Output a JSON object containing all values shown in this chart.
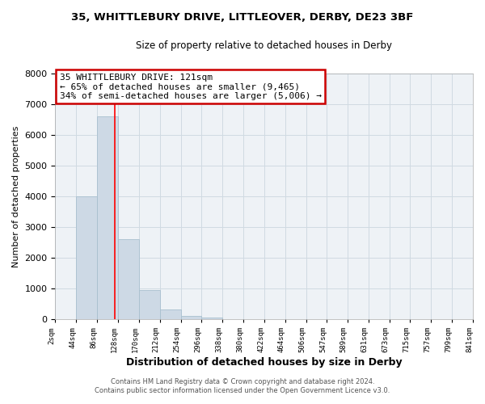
{
  "title": "35, WHITTLEBURY DRIVE, LITTLEOVER, DERBY, DE23 3BF",
  "subtitle": "Size of property relative to detached houses in Derby",
  "xlabel": "Distribution of detached houses by size in Derby",
  "ylabel": "Number of detached properties",
  "bin_edges": [
    2,
    44,
    86,
    128,
    170,
    212,
    254,
    296,
    338,
    380,
    422,
    464,
    506,
    547,
    589,
    631,
    673,
    715,
    757,
    799,
    841
  ],
  "bar_heights": [
    0,
    4000,
    6600,
    2600,
    950,
    330,
    120,
    60,
    0,
    0,
    0,
    0,
    0,
    0,
    0,
    0,
    0,
    0,
    0,
    0
  ],
  "bar_color": "#cdd9e5",
  "bar_edge_color": "#a8bfcf",
  "property_line_x": 121,
  "ylim": [
    0,
    8000
  ],
  "annotation_title": "35 WHITTLEBURY DRIVE: 121sqm",
  "annotation_line1": "← 65% of detached houses are smaller (9,465)",
  "annotation_line2": "34% of semi-detached houses are larger (5,006) →",
  "annotation_box_color": "#ffffff",
  "annotation_box_edge": "#cc0000",
  "footer_line1": "Contains HM Land Registry data © Crown copyright and database right 2024.",
  "footer_line2": "Contains public sector information licensed under the Open Government Licence v3.0.",
  "grid_color": "#d0dae2",
  "tick_labels": [
    "2sqm",
    "44sqm",
    "86sqm",
    "128sqm",
    "170sqm",
    "212sqm",
    "254sqm",
    "296sqm",
    "338sqm",
    "380sqm",
    "422sqm",
    "464sqm",
    "506sqm",
    "547sqm",
    "589sqm",
    "631sqm",
    "673sqm",
    "715sqm",
    "757sqm",
    "799sqm",
    "841sqm"
  ],
  "bg_color": "#eef2f6"
}
